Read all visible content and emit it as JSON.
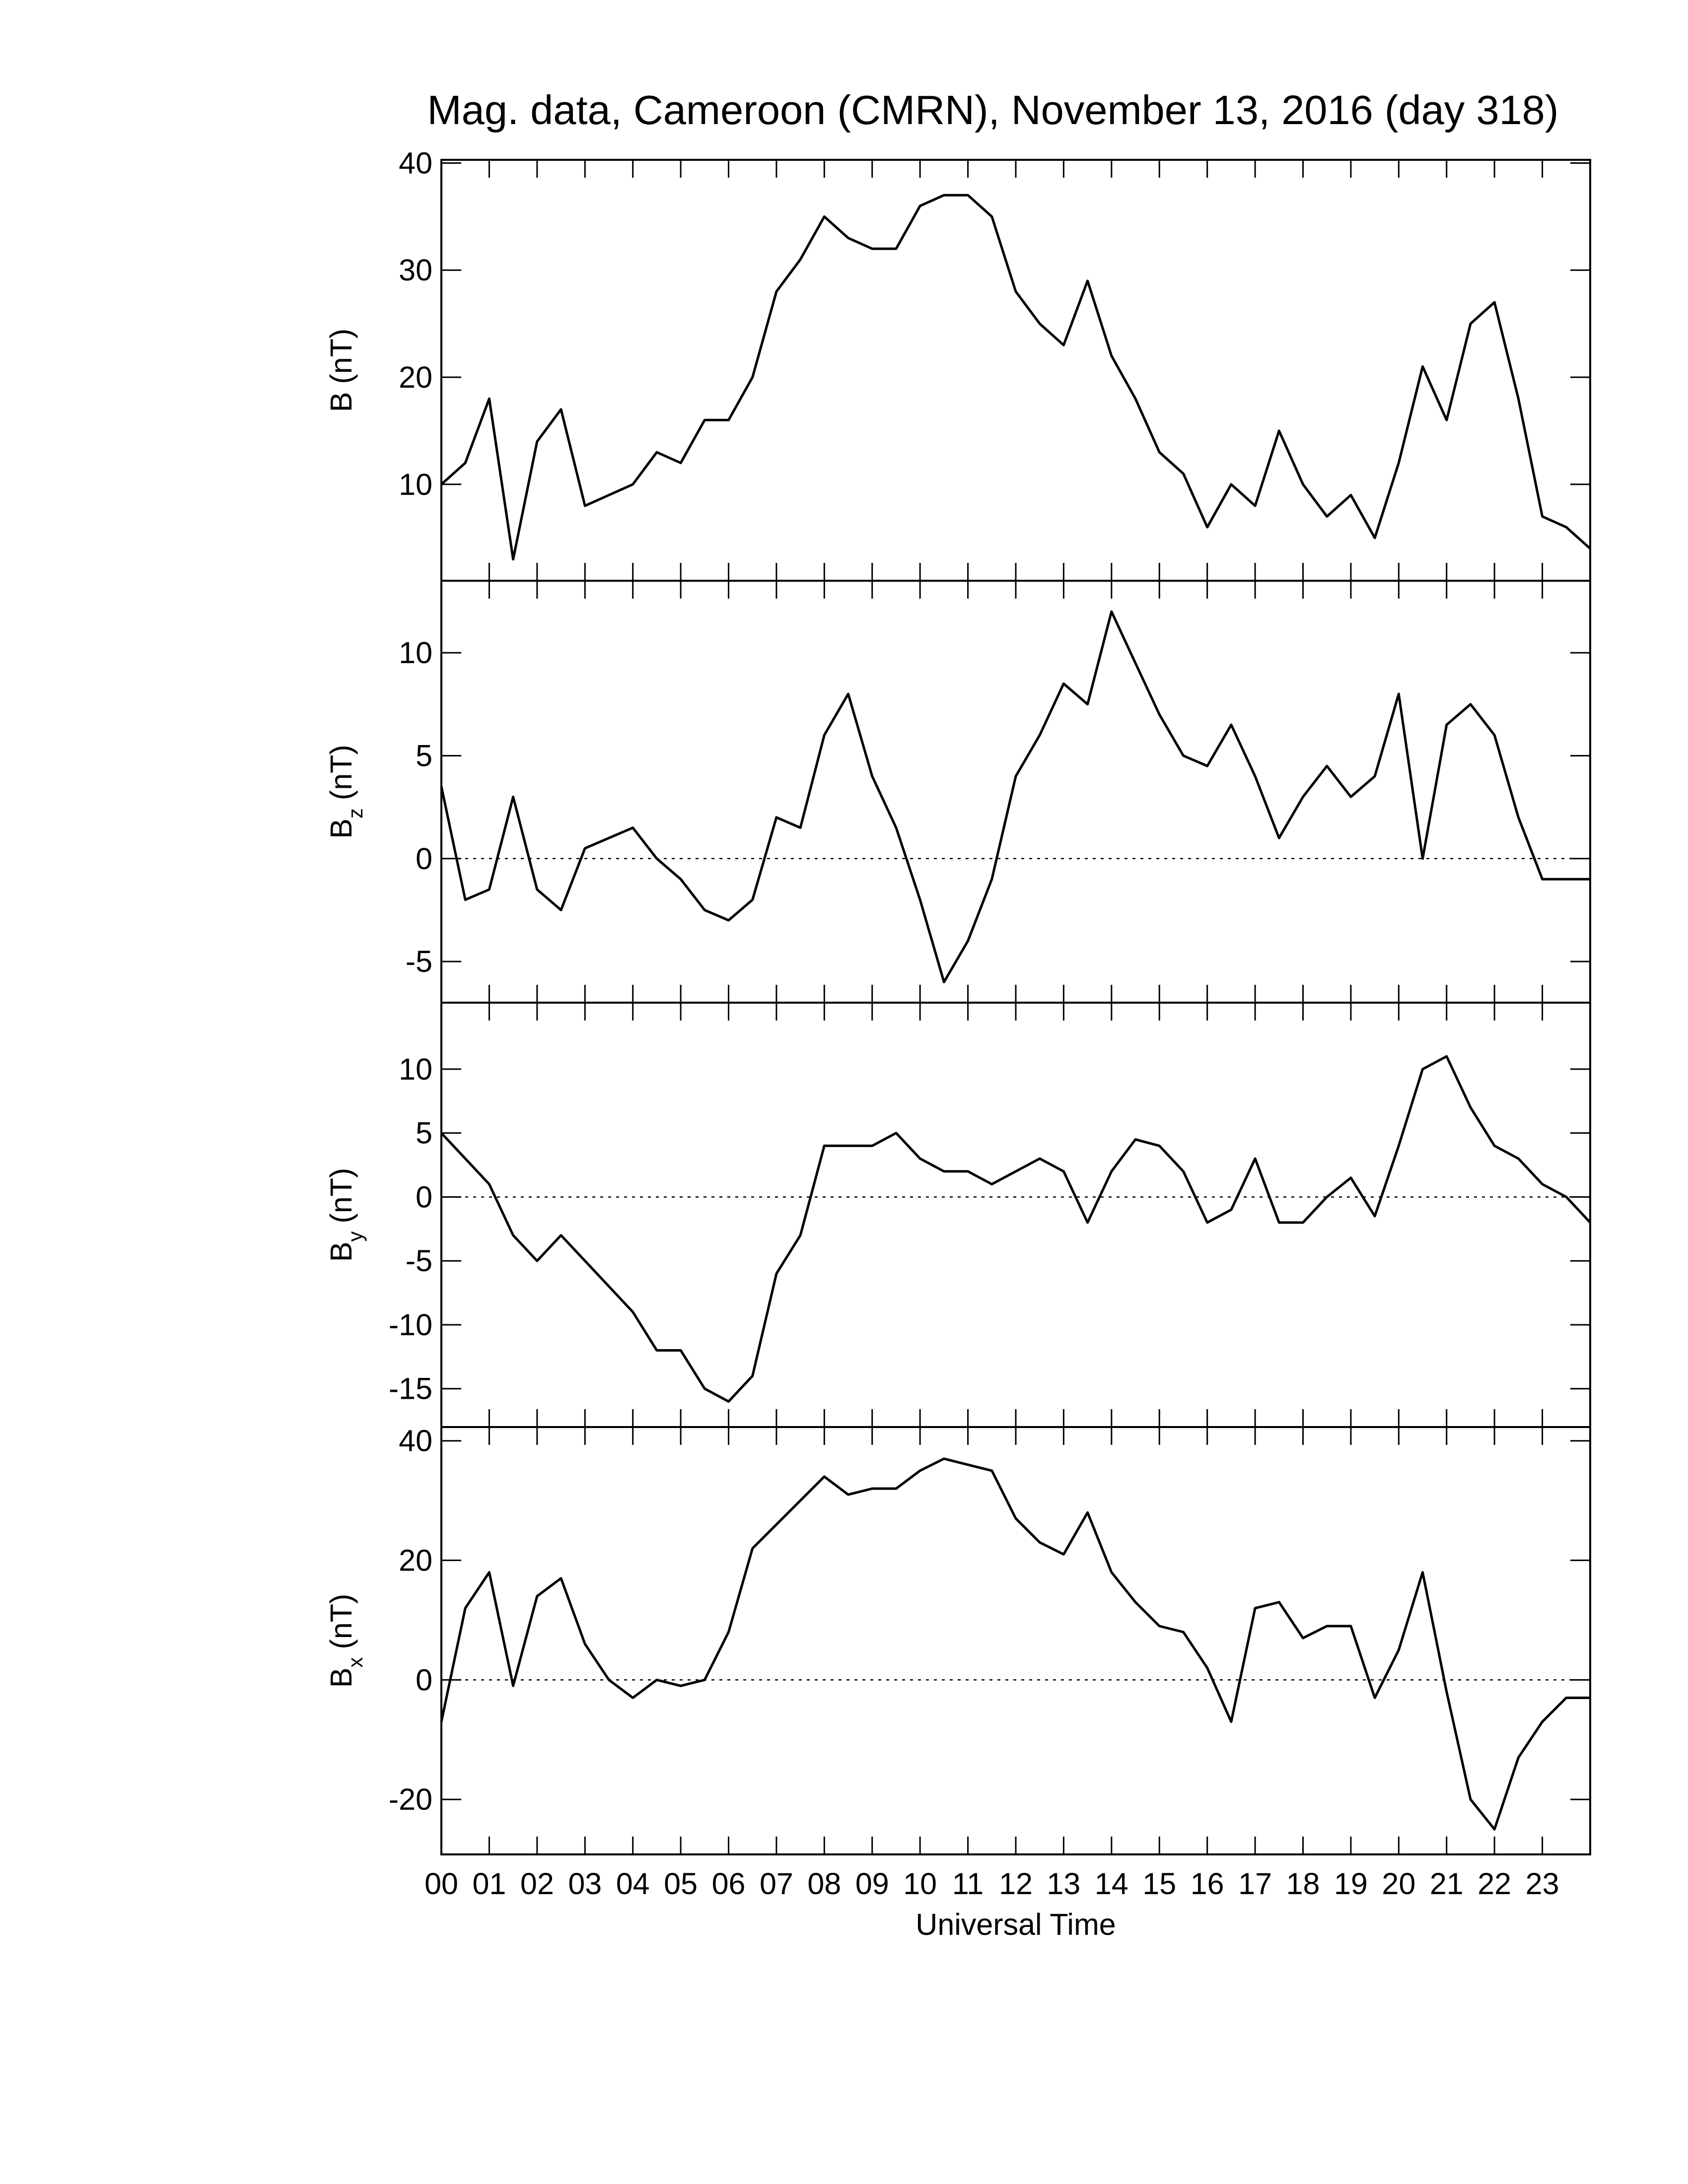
{
  "chart_data": [
    {
      "type": "line",
      "title": "Mag. data, Cameroon (CMRN), November 13, 2016 (day 318)",
      "ylabel": {
        "base": "B",
        "unit": "(nT)"
      },
      "color": "#000000",
      "x": [
        0,
        0.5,
        1,
        1.5,
        2,
        2.5,
        3,
        3.5,
        4,
        4.5,
        5,
        5.5,
        6,
        6.5,
        7,
        7.5,
        8,
        8.5,
        9,
        9.5,
        10,
        10.5,
        11,
        11.5,
        12,
        12.5,
        13,
        13.5,
        14,
        14.5,
        15,
        15.5,
        16,
        16.5,
        17,
        17.5,
        18,
        18.5,
        19,
        19.5,
        20,
        20.5,
        21,
        21.5,
        22,
        22.5,
        23,
        23.5,
        24
      ],
      "values": [
        10,
        12,
        18,
        3,
        14,
        17,
        8,
        9,
        10,
        13,
        12,
        16,
        16,
        20,
        28,
        31,
        35,
        33,
        32,
        32,
        36,
        37,
        37,
        35,
        28,
        25,
        23,
        29,
        22,
        18,
        13,
        11,
        6,
        10,
        8,
        15,
        10,
        7,
        9,
        5,
        12,
        21,
        16,
        25,
        27,
        18,
        7,
        6,
        4
      ],
      "xlim": [
        0,
        24
      ],
      "xticks": [
        0,
        1,
        2,
        3,
        4,
        5,
        6,
        7,
        8,
        9,
        10,
        11,
        12,
        13,
        14,
        15,
        16,
        17,
        18,
        19,
        20,
        21,
        22,
        23
      ],
      "ylim": [
        1,
        40.3
      ],
      "yticks": [
        10,
        20,
        30,
        40
      ]
    },
    {
      "type": "line",
      "ylabel": {
        "base": "B",
        "sub": "z",
        "unit": "(nT)"
      },
      "color": "#000000",
      "hline": 0,
      "x": [
        0,
        0.5,
        1,
        1.5,
        2,
        2.5,
        3,
        3.5,
        4,
        4.5,
        5,
        5.5,
        6,
        6.5,
        7,
        7.5,
        8,
        8.5,
        9,
        9.5,
        10,
        10.5,
        11,
        11.5,
        12,
        12.5,
        13,
        13.5,
        14,
        14.5,
        15,
        15.5,
        16,
        16.5,
        17,
        17.5,
        18,
        18.5,
        19,
        19.5,
        20,
        20.5,
        21,
        21.5,
        22,
        22.5,
        23,
        23.5,
        24
      ],
      "values": [
        3.5,
        -2,
        -1.5,
        3,
        -1.5,
        -2.5,
        0.5,
        1,
        1.5,
        0,
        -1,
        -2.5,
        -3,
        -2,
        2,
        1.5,
        6,
        8,
        4,
        1.5,
        -2,
        -6,
        -4,
        -1,
        4,
        6,
        8.5,
        7.5,
        12,
        9.5,
        7,
        5,
        4.5,
        6.5,
        4,
        1,
        3,
        4.5,
        3,
        4,
        8,
        0,
        6.5,
        7.5,
        6,
        2,
        -1,
        -1,
        -1
      ],
      "xlim": [
        0,
        24
      ],
      "xticks": [
        0,
        1,
        2,
        3,
        4,
        5,
        6,
        7,
        8,
        9,
        10,
        11,
        12,
        13,
        14,
        15,
        16,
        17,
        18,
        19,
        20,
        21,
        22,
        23
      ],
      "ylim": [
        -7,
        13.5
      ],
      "yticks": [
        -5,
        0,
        5,
        10
      ]
    },
    {
      "type": "line",
      "ylabel": {
        "base": "B",
        "sub": "y",
        "unit": "(nT)"
      },
      "color": "#000000",
      "hline": 0,
      "x": [
        0,
        0.5,
        1,
        1.5,
        2,
        2.5,
        3,
        3.5,
        4,
        4.5,
        5,
        5.5,
        6,
        6.5,
        7,
        7.5,
        8,
        8.5,
        9,
        9.5,
        10,
        10.5,
        11,
        11.5,
        12,
        12.5,
        13,
        13.5,
        14,
        14.5,
        15,
        15.5,
        16,
        16.5,
        17,
        17.5,
        18,
        18.5,
        19,
        19.5,
        20,
        20.5,
        21,
        21.5,
        22,
        22.5,
        23,
        23.5,
        24
      ],
      "values": [
        5,
        3,
        1,
        -3,
        -5,
        -3,
        -5,
        -7,
        -9,
        -12,
        -12,
        -15,
        -16,
        -14,
        -6,
        -3,
        4,
        4,
        4,
        5,
        3,
        2,
        2,
        1,
        2,
        3,
        2,
        -2,
        2,
        4.5,
        4,
        2,
        -2,
        -1,
        3,
        -2,
        -2,
        0,
        1.5,
        -1.5,
        4,
        10,
        11,
        7,
        4,
        3,
        1,
        0,
        -2
      ],
      "xlim": [
        0,
        24
      ],
      "xticks": [
        0,
        1,
        2,
        3,
        4,
        5,
        6,
        7,
        8,
        9,
        10,
        11,
        12,
        13,
        14,
        15,
        16,
        17,
        18,
        19,
        20,
        21,
        22,
        23
      ],
      "ylim": [
        -18,
        15.2
      ],
      "yticks": [
        -15,
        -10,
        -5,
        0,
        5,
        10
      ]
    },
    {
      "type": "line",
      "ylabel": {
        "base": "B",
        "sub": "x",
        "unit": "(nT)"
      },
      "xlabel": "Universal Time",
      "color": "#000000",
      "hline": 0,
      "x": [
        0,
        0.5,
        1,
        1.5,
        2,
        2.5,
        3,
        3.5,
        4,
        4.5,
        5,
        5.5,
        6,
        6.5,
        7,
        7.5,
        8,
        8.5,
        9,
        9.5,
        10,
        10.5,
        11,
        11.5,
        12,
        12.5,
        13,
        13.5,
        14,
        14.5,
        15,
        15.5,
        16,
        16.5,
        17,
        17.5,
        18,
        18.5,
        19,
        19.5,
        20,
        20.5,
        21,
        21.5,
        22,
        22.5,
        23,
        23.5,
        24
      ],
      "values": [
        -7,
        12,
        18,
        -1,
        14,
        17,
        6,
        0,
        -3,
        0,
        -1,
        0,
        8,
        22,
        26,
        30,
        34,
        31,
        32,
        32,
        35,
        37,
        36,
        35,
        27,
        23,
        21,
        28,
        18,
        13,
        9,
        8,
        2,
        -7,
        12,
        13,
        7,
        9,
        9,
        -3,
        5,
        18,
        -2,
        -20,
        -25,
        -13,
        -7,
        -3,
        -3
      ],
      "xlim": [
        0,
        24
      ],
      "xticks": [
        {
          "value": 0,
          "label": "00"
        },
        {
          "value": 1,
          "label": "01"
        },
        {
          "value": 2,
          "label": "02"
        },
        {
          "value": 3,
          "label": "03"
        },
        {
          "value": 4,
          "label": "04"
        },
        {
          "value": 5,
          "label": "05"
        },
        {
          "value": 6,
          "label": "06"
        },
        {
          "value": 7,
          "label": "07"
        },
        {
          "value": 8,
          "label": "08"
        },
        {
          "value": 9,
          "label": "09"
        },
        {
          "value": 10,
          "label": "10"
        },
        {
          "value": 11,
          "label": "11"
        },
        {
          "value": 12,
          "label": "12"
        },
        {
          "value": 13,
          "label": "13"
        },
        {
          "value": 14,
          "label": "14"
        },
        {
          "value": 15,
          "label": "15"
        },
        {
          "value": 16,
          "label": "16"
        },
        {
          "value": 17,
          "label": "17"
        },
        {
          "value": 18,
          "label": "18"
        },
        {
          "value": 19,
          "label": "19"
        },
        {
          "value": 20,
          "label": "20"
        },
        {
          "value": 21,
          "label": "21"
        },
        {
          "value": 22,
          "label": "22"
        },
        {
          "value": 23,
          "label": "23"
        }
      ],
      "ylim": [
        -29.2,
        42.3
      ],
      "yticks": [
        -20,
        0,
        20,
        40
      ]
    }
  ]
}
